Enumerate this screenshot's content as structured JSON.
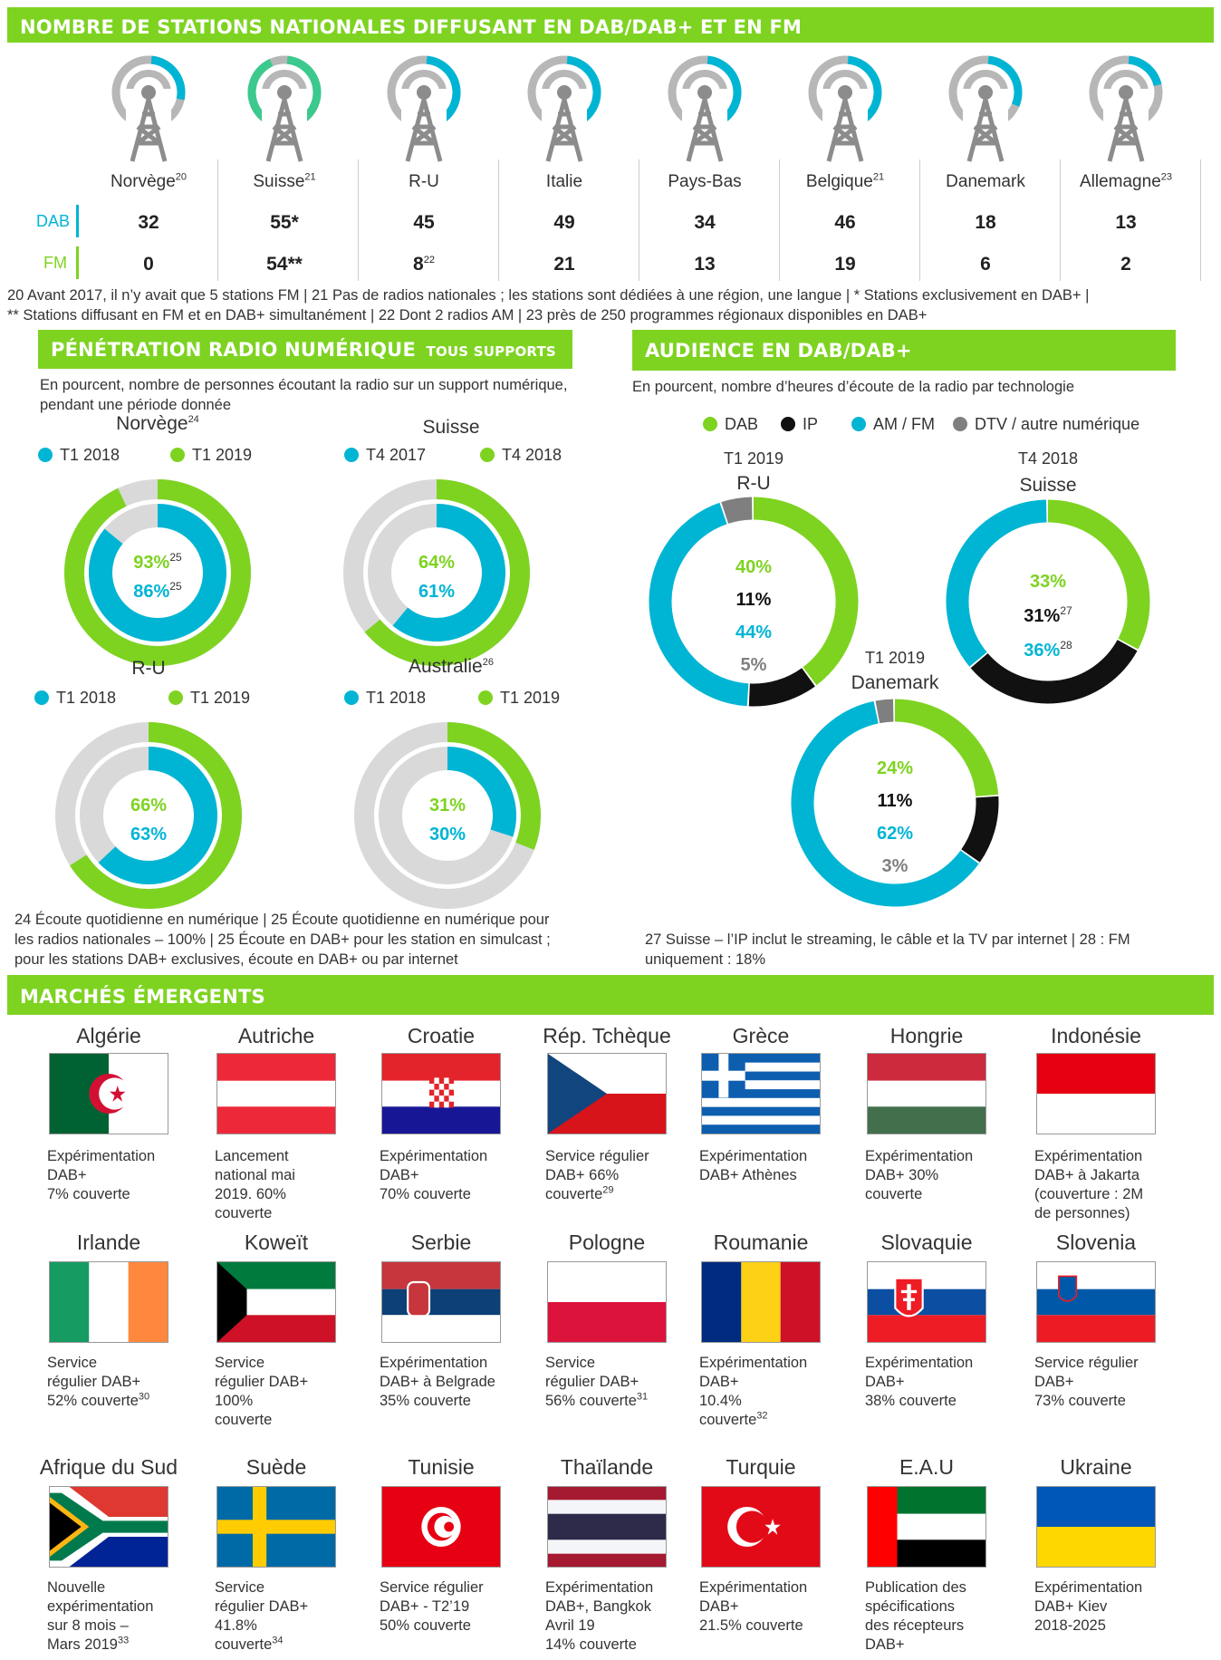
{
  "sections": {
    "stations_title": "NOMBRE DE STATIONS NATIONALES DIFFUSANT EN DAB/DAB+ ET EN FM",
    "penetration_title": "PÉNÉTRATION RADIO NUMÉRIQUE",
    "penetration_title_small": "TOUS SUPPORTS",
    "penetration_sub": "En pourcent, nombre de personnes écoutant la radio sur un support numérique, pendant une période donnée",
    "audience_title": "AUDIENCE EN DAB/DAB+",
    "audience_sub": "En pourcent, nombre d’heures d’écoute de la radio par technologie",
    "emerging_title": "MARCHÉS ÉMERGENTS"
  },
  "stations": {
    "row_dab": "DAB",
    "row_fm": "FM",
    "countries": [
      {
        "name": "Norvège",
        "sup": "20",
        "dab": "32",
        "fm": "0"
      },
      {
        "name": "Suisse",
        "sup": "21",
        "dab": "55*",
        "fm": "54**"
      },
      {
        "name": "R-U",
        "sup": "",
        "dab": "45",
        "fm": "8",
        "fm_sup": "22"
      },
      {
        "name": "Italie",
        "sup": "",
        "dab": "49",
        "fm": "21"
      },
      {
        "name": "Pays-Bas",
        "sup": "",
        "dab": "34",
        "fm": "13"
      },
      {
        "name": "Belgique",
        "sup": "21",
        "dab": "46",
        "fm": "19"
      },
      {
        "name": "Danemark",
        "sup": "",
        "dab": "18",
        "fm": "6"
      },
      {
        "name": "Allemagne",
        "sup": "23",
        "dab": "13",
        "fm": "2"
      }
    ],
    "footnote_1": "20 Avant 2017, il n’y avait que 5 stations FM | 21 Pas de radios nationales ; les stations sont dédiées à une région, une langue | * Stations exclusivement en DAB+ |",
    "footnote_2": "** Stations diffusant en FM et en DAB+ simultanément | 22 Dont 2 radios AM | 23 près de 250 programmes régionaux disponibles en DAB+"
  },
  "penetration": {
    "charts": [
      {
        "country": "Norvège",
        "sup": "24",
        "legend": [
          "T1 2018",
          "T1 2019"
        ],
        "outer": "93%",
        "outer_sup": "25",
        "inner": "86%",
        "inner_sup": "25"
      },
      {
        "country": "Suisse",
        "sup": "",
        "legend": [
          "T4 2017",
          "T4 2018"
        ],
        "outer": "64%",
        "outer_sup": "",
        "inner": "61%",
        "inner_sup": ""
      },
      {
        "country": "R-U",
        "sup": "",
        "legend": [
          "T1 2018",
          "T1 2019"
        ],
        "outer": "66%",
        "outer_sup": "",
        "inner": "63%",
        "inner_sup": ""
      },
      {
        "country": "Australie",
        "sup": "26",
        "legend": [
          "T1 2018",
          "T1 2019"
        ],
        "outer": "31%",
        "outer_sup": "",
        "inner": "30%",
        "inner_sup": ""
      }
    ],
    "footnote_1": "24 Écoute quotidienne en numérique | 25 Écoute quotidienne en numérique pour",
    "footnote_2": "les radios nationales – 100% | 25 Écoute en DAB+ pour les station en simulcast ;",
    "footnote_3": "pour les stations DAB+ exclusives, écoute en DAB+ ou par internet"
  },
  "audience": {
    "legend": [
      "DAB",
      "IP",
      "AM / FM",
      "DTV / autre numérique"
    ],
    "charts": [
      {
        "period": "T1 2019",
        "country": "R-U",
        "dab": "40%",
        "ip": "11%",
        "amfm": "44%",
        "dtv": "5%",
        "ip_sup": "",
        "amfm_sup": ""
      },
      {
        "period": "T4 2018",
        "country": "Suisse",
        "dab": "33%",
        "ip": "31%",
        "amfm": "36%",
        "dtv": "",
        "ip_sup": "27",
        "amfm_sup": "28"
      },
      {
        "period": "T1 2019",
        "country": "Danemark",
        "dab": "24%",
        "ip": "11%",
        "amfm": "62%",
        "dtv": "3%",
        "ip_sup": "",
        "amfm_sup": ""
      }
    ],
    "footnote_1": "27 Suisse – l’IP inclut le streaming, le câble et la TV par internet | 28 : FM",
    "footnote_2": "uniquement : 18%"
  },
  "emerging": [
    {
      "name": "Algérie",
      "desc": [
        "Expérimentation",
        "DAB+",
        "7% couverte"
      ]
    },
    {
      "name": "Autriche",
      "desc": [
        "Lancement",
        "national mai",
        "2019. 60%",
        "couverte"
      ]
    },
    {
      "name": "Croatie",
      "desc": [
        "Expérimentation",
        "DAB+",
        "70% couverte"
      ]
    },
    {
      "name": "Rép. Tchèque",
      "desc": [
        "Service régulier",
        "DAB+ 66%",
        "couverte"
      ],
      "sup": "29"
    },
    {
      "name": "Grèce",
      "desc": [
        "Expérimentation",
        "DAB+ Athènes"
      ]
    },
    {
      "name": "Hongrie",
      "desc": [
        "Expérimentation",
        "DAB+ 30%",
        "couverte"
      ]
    },
    {
      "name": "Indonésie",
      "desc": [
        "Expérimentation",
        "DAB+ à Jakarta",
        "(couverture : 2M",
        "de personnes)"
      ]
    },
    {
      "name": "Irlande",
      "desc": [
        "Service",
        "régulier DAB+",
        "52% couverte"
      ],
      "sup": "30"
    },
    {
      "name": "Koweït",
      "desc": [
        "Service",
        "régulier DAB+",
        "100%",
        "couverte"
      ]
    },
    {
      "name": "Serbie",
      "desc": [
        "Expérimentation",
        "DAB+ à Belgrade",
        "35% couverte"
      ]
    },
    {
      "name": "Pologne",
      "desc": [
        "Service",
        "régulier DAB+",
        "56% couverte"
      ],
      "sup": "31"
    },
    {
      "name": "Roumanie",
      "desc": [
        "Expérimentation",
        "DAB+",
        "10.4%",
        "couverte"
      ],
      "sup": "32"
    },
    {
      "name": "Slovaquie",
      "desc": [
        "Expérimentation",
        "DAB+",
        "38% couverte"
      ]
    },
    {
      "name": "Slovenia",
      "desc": [
        "Service régulier",
        "DAB+",
        "73% couverte"
      ]
    },
    {
      "name": "Afrique du Sud",
      "desc": [
        "Nouvelle",
        "expérimentation",
        "sur 8 mois –",
        "Mars 2019"
      ],
      "sup": "33"
    },
    {
      "name": "Suède",
      "desc": [
        "Service",
        "régulier DAB+",
        "41.8%",
        "couverte"
      ],
      "sup": "34"
    },
    {
      "name": "Tunisie",
      "desc": [
        "Service régulier",
        "DAB+ - T2’19",
        "50% couverte"
      ]
    },
    {
      "name": "Thaïlande",
      "desc": [
        "Expérimentation",
        "DAB+, Bangkok",
        "Avril 19",
        "14% couverte"
      ]
    },
    {
      "name": "Turquie",
      "desc": [
        "Expérimentation",
        "DAB+",
        "21.5% couverte"
      ]
    },
    {
      "name": "E.A.U",
      "desc": [
        "Publication des",
        "spécifications",
        "des récepteurs",
        "DAB+"
      ]
    },
    {
      "name": "Ukraine",
      "desc": [
        "Expérimentation",
        "DAB+ Kiev",
        "2018-2025"
      ]
    }
  ],
  "colors": {
    "green": "#7ed321",
    "cyan": "#00b5d4",
    "black": "#111111",
    "grey": "#d9d9d9",
    "darkgrey": "#7f7f7f"
  },
  "chart_data": [
    {
      "type": "table",
      "title": "NOMBRE DE STATIONS NATIONALES DIFFUSANT EN DAB/DAB+ ET EN FM",
      "categories": [
        "Norvège",
        "Suisse",
        "R-U",
        "Italie",
        "Pays-Bas",
        "Belgique",
        "Danemark",
        "Allemagne"
      ],
      "series": [
        {
          "name": "DAB",
          "values": [
            32,
            55,
            45,
            49,
            34,
            46,
            18,
            13
          ]
        },
        {
          "name": "FM",
          "values": [
            0,
            54,
            8,
            21,
            13,
            19,
            6,
            2
          ]
        }
      ]
    },
    {
      "type": "pie",
      "title": "PÉNÉTRATION RADIO NUMÉRIQUE TOUS SUPPORTS",
      "categories": [
        "Norvège",
        "Suisse",
        "R-U",
        "Australie"
      ],
      "series": [
        {
          "name": "first period",
          "values": [
            86,
            61,
            63,
            30
          ]
        },
        {
          "name": "second period",
          "values": [
            93,
            64,
            66,
            31
          ]
        }
      ]
    },
    {
      "type": "pie",
      "title": "AUDIENCE EN DAB/DAB+",
      "categories": [
        "DAB",
        "IP",
        "AM / FM",
        "DTV / autre numérique"
      ],
      "series": [
        {
          "name": "R-U",
          "values": [
            40,
            11,
            44,
            5
          ]
        },
        {
          "name": "Suisse",
          "values": [
            33,
            31,
            36,
            0
          ]
        },
        {
          "name": "Danemark",
          "values": [
            24,
            11,
            62,
            3
          ]
        }
      ]
    }
  ]
}
